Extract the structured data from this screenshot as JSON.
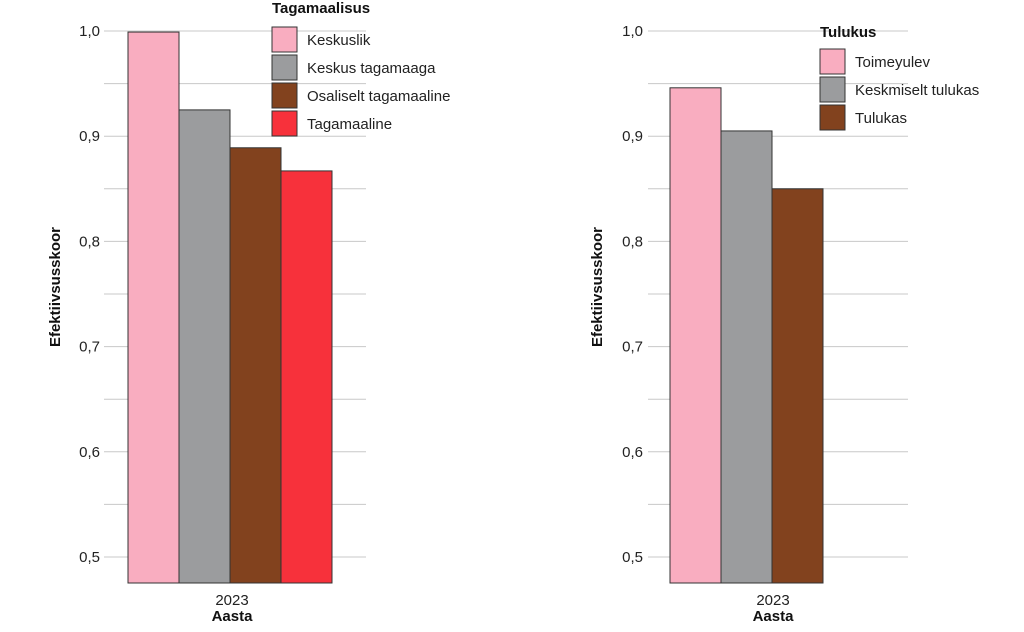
{
  "chart_data": [
    {
      "type": "bar",
      "categories": [
        "2023"
      ],
      "xlabel": "Aasta",
      "ylabel": "Efektiivsusskoor",
      "ylim": [
        0.475,
        1.0
      ],
      "yticks": [
        "1,0",
        "0,9",
        "0,8",
        "0,7",
        "0,6",
        "0,5"
      ],
      "ytick_values": [
        1.0,
        0.9,
        0.8,
        0.7,
        0.6,
        0.5
      ],
      "grid": true,
      "legend_title": "Tagamaalisus",
      "legend_position": "top-right",
      "series": [
        {
          "name": "Keskuslik",
          "values": [
            0.999
          ],
          "color": "#f9adc0"
        },
        {
          "name": "Keskus tagamaaga",
          "values": [
            0.925
          ],
          "color": "#9b9c9e"
        },
        {
          "name": "Osaliselt tagamaaline",
          "values": [
            0.889
          ],
          "color": "#82421e"
        },
        {
          "name": "Tagamaaline",
          "values": [
            0.867
          ],
          "color": "#f7313b"
        }
      ]
    },
    {
      "type": "bar",
      "categories": [
        "2023"
      ],
      "xlabel": "Aasta",
      "ylabel": "Efektiivsusskoor",
      "ylim": [
        0.475,
        1.0
      ],
      "yticks": [
        "1,0",
        "0,9",
        "0,8",
        "0,7",
        "0,6",
        "0,5"
      ],
      "ytick_values": [
        1.0,
        0.9,
        0.8,
        0.7,
        0.6,
        0.5
      ],
      "grid": true,
      "legend_title": "Tulukus",
      "legend_position": "top-right",
      "series": [
        {
          "name": "Toimeyulev",
          "values": [
            0.946
          ],
          "color": "#f9adc0"
        },
        {
          "name": "Keskmiselt tulukas",
          "values": [
            0.905
          ],
          "color": "#9b9c9e"
        },
        {
          "name": "Tulukas",
          "values": [
            0.85
          ],
          "color": "#82421e"
        }
      ]
    }
  ]
}
